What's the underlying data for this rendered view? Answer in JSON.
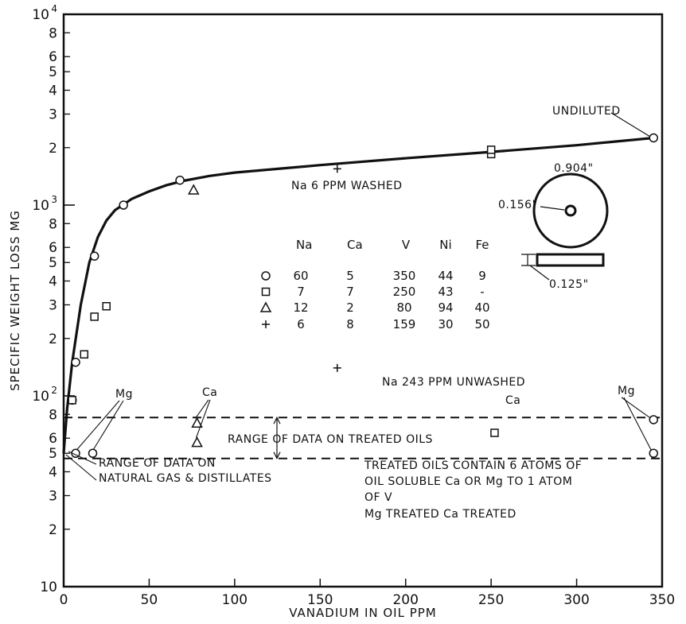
{
  "chart_data": {
    "type": "scatter",
    "xlabel": "VANADIUM IN OIL PPM",
    "ylabel": "SPECIFIC WEIGHT LOSS MG",
    "xlim": [
      0,
      350
    ],
    "ylim": [
      10,
      10000
    ],
    "yscale": "log",
    "grid": false,
    "x_ticks": [
      "0",
      "50",
      "100",
      "150",
      "200",
      "250",
      "300",
      "350"
    ],
    "y_major_ticks": [
      {
        "value": 10,
        "base": "10",
        "exp": ""
      },
      {
        "value": 100,
        "base": "10",
        "exp": "2"
      },
      {
        "value": 1000,
        "base": "10",
        "exp": "3"
      },
      {
        "value": 10000,
        "base": "10",
        "exp": "4"
      }
    ],
    "y_minor_ticks": [
      {
        "value": 2,
        "label": "2"
      },
      {
        "value": 3,
        "label": "3"
      },
      {
        "value": 4,
        "label": "4"
      },
      {
        "value": 5,
        "label": "5"
      },
      {
        "value": 6,
        "label": "6"
      },
      {
        "value": 8,
        "label": "8"
      }
    ],
    "series": [
      {
        "marker": "circle",
        "points": [
          [
            5,
            95
          ],
          [
            7,
            50
          ],
          [
            7,
            150
          ],
          [
            17,
            50
          ],
          [
            18,
            540
          ],
          [
            35,
            1000
          ],
          [
            68,
            1350
          ],
          [
            345,
            2250
          ],
          [
            345,
            75
          ],
          [
            345,
            50
          ]
        ]
      },
      {
        "marker": "square",
        "points": [
          [
            5,
            95
          ],
          [
            12,
            165
          ],
          [
            18,
            260
          ],
          [
            25,
            295
          ],
          [
            250,
            1850
          ],
          [
            250,
            1950
          ],
          [
            252,
            64
          ]
        ]
      },
      {
        "marker": "triangle",
        "points": [
          [
            76,
            1200
          ],
          [
            78,
            72
          ],
          [
            78,
            57
          ]
        ]
      },
      {
        "marker": "plus",
        "points": [
          [
            160,
            1550
          ],
          [
            160,
            140
          ]
        ]
      }
    ],
    "fitted_curve": [
      [
        0,
        50
      ],
      [
        2,
        85
      ],
      [
        5,
        150
      ],
      [
        10,
        300
      ],
      [
        15,
        500
      ],
      [
        20,
        680
      ],
      [
        25,
        830
      ],
      [
        30,
        940
      ],
      [
        40,
        1080
      ],
      [
        50,
        1180
      ],
      [
        60,
        1270
      ],
      [
        70,
        1340
      ],
      [
        85,
        1420
      ],
      [
        100,
        1480
      ],
      [
        150,
        1620
      ],
      [
        200,
        1760
      ],
      [
        250,
        1900
      ],
      [
        300,
        2060
      ],
      [
        345,
        2250
      ]
    ],
    "treated_range_lines": [
      77,
      47
    ],
    "composition_table": {
      "headers": [
        "Na",
        "Ca",
        "V",
        "Ni",
        "Fe"
      ],
      "rows": [
        {
          "marker": "circle",
          "values": [
            "60",
            "5",
            "350",
            "44",
            "9"
          ]
        },
        {
          "marker": "square",
          "values": [
            "7",
            "7",
            "250",
            "43",
            "-"
          ]
        },
        {
          "marker": "triangle",
          "values": [
            "12",
            "2",
            "80",
            "94",
            "40"
          ]
        },
        {
          "marker": "plus",
          "values": [
            "6",
            "8",
            "159",
            "30",
            "50"
          ]
        }
      ]
    },
    "annotations": {
      "undiluted": "UNDILUTED",
      "na_washed": "Na 6 PPM WASHED",
      "na_unwashed": "Na 243 PPM UNWASHED",
      "range_treated": "RANGE OF DATA ON TREATED OILS",
      "range_natural_1": "RANGE OF DATA ON",
      "range_natural_2": "NATURAL GAS & DISTILLATES",
      "treated_note_1": "TREATED OILS CONTAIN 6 ATOMS OF",
      "treated_note_2": "OIL SOLUBLE Ca OR Mg TO 1 ATOM",
      "treated_note_3": "OF V",
      "treated_note_4": "Mg TREATED   Ca TREATED",
      "mg_left": "Mg",
      "ca_mid": "Ca",
      "ca_right": "Ca",
      "mg_right": "Mg",
      "dim_outer": "0.904\"",
      "dim_inner": "0.156\"",
      "dim_thick": "0.125\""
    }
  }
}
